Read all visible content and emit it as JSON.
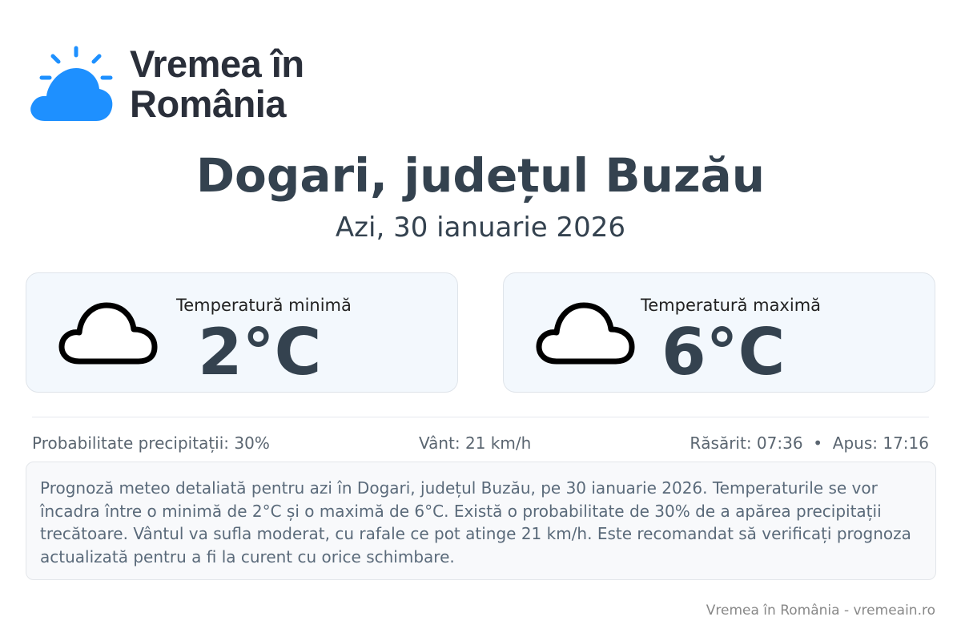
{
  "brand": {
    "line1": "Vremea în",
    "line2": "România",
    "color": "#1e90ff"
  },
  "header": {
    "title": "Dogari, județul Buzău",
    "date": "Azi, 30 ianuarie 2026"
  },
  "cards": [
    {
      "label": "Temperatură minimă",
      "value": "2°C",
      "icon": "cloud-icon"
    },
    {
      "label": "Temperatură maximă",
      "value": "6°C",
      "icon": "cloud-icon"
    }
  ],
  "stats": {
    "precip": "Probabilitate precipitații: 30%",
    "wind": "Vânt: 21 km/h",
    "sun": "Răsărit: 07:36  •  Apus: 17:16"
  },
  "description": "Prognoză meteo detaliată pentru azi în Dogari, județul Buzău, pe 30 ianuarie 2026. Temperaturile se vor încadra între o minimă de 2°C și o maximă de 6°C. Există o probabilitate de 30% de a apărea precipitații trecătoare. Vântul va sufla moderat, cu rafale ce pot atinge 21 km/h. Este recomandat să verificați prognoza actualizată pentru a fi la curent cu orice schimbare.",
  "footer": "Vremea în România - vremeain.ro"
}
